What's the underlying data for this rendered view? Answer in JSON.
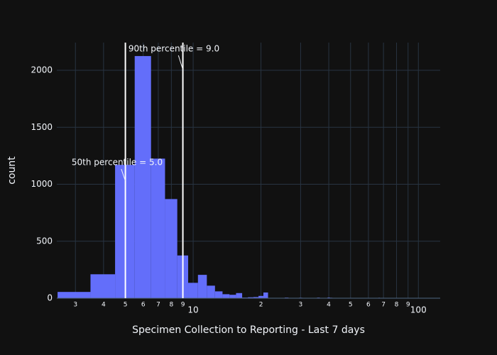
{
  "chart_data": {
    "type": "histogram",
    "x_label": "Specimen Collection to Reporting - Last 7 days",
    "y_label": "count",
    "color": "#636efa",
    "log_x": true,
    "grid": true,
    "bins": [
      2.5,
      3.5,
      4.5,
      5.5,
      6.5,
      7.5,
      8.5,
      9.5,
      10.5,
      11.5,
      12.5,
      13.5,
      14.5,
      15.5,
      16.5,
      17.5,
      18.5,
      19.5,
      20.5,
      21.5,
      22.5,
      23.5,
      24.5,
      25.5,
      26.5,
      27.5,
      28.5,
      29.5,
      30.5,
      31.5,
      32.5,
      33.5,
      34.5,
      35.5,
      36.5,
      37.5,
      38.5,
      39.5,
      40.5,
      41.5,
      42.5,
      43.5,
      44.5,
      45.5,
      46.5,
      47.5,
      48.5,
      49.5,
      50.5,
      51.5,
      52.5,
      53.5,
      54.5,
      55.5,
      56.5,
      57.5,
      58.5,
      59.5,
      60.5,
      61.5,
      62.5,
      63.5,
      64.5,
      65.5,
      66.5,
      67.5,
      68.5,
      69.5,
      70.5,
      71.5,
      72.5,
      73.5,
      74.5,
      75.5,
      76.5,
      77.5,
      78.5,
      79.5,
      80.5,
      81.5,
      82.5,
      83.5,
      84.5,
      85.5,
      86.5,
      87.5,
      88.5,
      89.5,
      90.5,
      91.5,
      92.5,
      93.5,
      94.5,
      95.5,
      96.5,
      97.5,
      98.5,
      99.5,
      100.5,
      101.5,
      102.5,
      103.5,
      104.5,
      105.5,
      106.5,
      107.5,
      108.5,
      109.5,
      110.5
    ],
    "values": [
      55,
      210,
      1170,
      2125,
      1225,
      870,
      375,
      135,
      205,
      110,
      60,
      35,
      30,
      45,
      5,
      8,
      10,
      20,
      50,
      3,
      2,
      0,
      2,
      5,
      2,
      3,
      0,
      4,
      2,
      0,
      3,
      2,
      0,
      5,
      3,
      0,
      3,
      6,
      4,
      2,
      0,
      3,
      0,
      2,
      0,
      2,
      0,
      3,
      0,
      2,
      0,
      0,
      3,
      0,
      2,
      0,
      0,
      2,
      0,
      0,
      0,
      2,
      0,
      0,
      4,
      0,
      0,
      3,
      0,
      2,
      0,
      0,
      0,
      0,
      2,
      0,
      0,
      3,
      0,
      0,
      0,
      0,
      0,
      2,
      0,
      0,
      0,
      2,
      0,
      0,
      0,
      0,
      0,
      0,
      0,
      0,
      2,
      0,
      0,
      0,
      0,
      0,
      0,
      0,
      0,
      0,
      0,
      0
    ],
    "xlim": [
      2.48,
      125
    ],
    "xticks": [
      3,
      4,
      5,
      6,
      7,
      8,
      9,
      10,
      {
        "value": 20,
        "label": "2"
      },
      {
        "value": 30,
        "label": "3"
      },
      {
        "value": 40,
        "label": "4"
      },
      {
        "value": 50,
        "label": "5"
      },
      {
        "value": 60,
        "label": "6"
      },
      {
        "value": 70,
        "label": "7"
      },
      {
        "value": 80,
        "label": "8"
      },
      {
        "value": 90,
        "label": "9"
      },
      100
    ],
    "ylim": [
      0,
      2243
    ],
    "yticks": [
      0,
      500,
      1000,
      1500,
      2000
    ],
    "vlines": [
      {
        "x": 5,
        "label": "50th percentile = 5.0",
        "color": "#ffffff"
      },
      {
        "x": 9,
        "label": "90th percentile = 9.0",
        "color": "#ffffff"
      }
    ]
  }
}
